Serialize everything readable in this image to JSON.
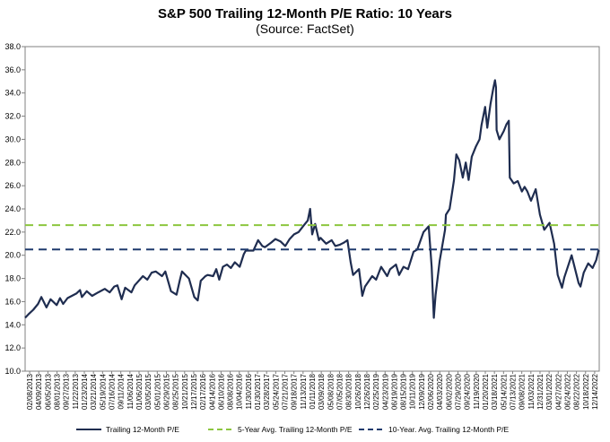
{
  "chart_data": {
    "type": "line",
    "title": "S&P 500 Trailing 12-Month P/E Ratio: 10 Years",
    "subtitle": "(Source: FactSet)",
    "xlabel": "",
    "ylabel": "",
    "ylim": [
      10.0,
      38.0
    ],
    "y_ticks": [
      "10.0",
      "12.0",
      "14.0",
      "16.0",
      "18.0",
      "20.0",
      "22.0",
      "24.0",
      "26.0",
      "28.0",
      "30.0",
      "32.0",
      "34.0",
      "36.0",
      "38.0"
    ],
    "x_start": "2013-02-08",
    "x_end": "2023-02-08",
    "x_ticks": [
      "02/08/2013",
      "04/09/2013",
      "06/05/2013",
      "08/01/2013",
      "09/27/2013",
      "11/22/2013",
      "01/23/2014",
      "03/21/2014",
      "05/19/2014",
      "07/16/2014",
      "09/11/2014",
      "11/06/2014",
      "01/06/2015",
      "03/05/2015",
      "05/01/2015",
      "06/29/2015",
      "08/25/2015",
      "10/21/2015",
      "12/17/2015",
      "02/17/2016",
      "04/14/2016",
      "06/10/2016",
      "08/08/2016",
      "10/04/2016",
      "11/30/2016",
      "01/30/2017",
      "03/28/2017",
      "05/24/2017",
      "07/21/2017",
      "09/18/2017",
      "11/13/2017",
      "01/11/2018",
      "03/09/2018",
      "05/08/2018",
      "07/05/2018",
      "08/30/2018",
      "10/26/2018",
      "12/26/2018",
      "02/25/2019",
      "04/23/2019",
      "06/19/2019",
      "08/15/2019",
      "10/11/2019",
      "12/09/2019",
      "02/06/2020",
      "04/03/2020",
      "06/02/2020",
      "07/29/2020",
      "09/24/2020",
      "11/19/2020",
      "01/20/2021",
      "03/18/2021",
      "05/14/2021",
      "07/13/2021",
      "09/08/2021",
      "11/03/2021",
      "12/31/2021",
      "03/01/2022",
      "04/27/2022",
      "06/24/2022",
      "08/22/2022",
      "10/18/2022",
      "12/14/2022"
    ],
    "series": [
      {
        "name": "Trailing 12-Month P/E",
        "color": "#1f2d50",
        "style": "solid",
        "points": [
          [
            "2013-02-08",
            14.6
          ],
          [
            "2013-03-01",
            14.9
          ],
          [
            "2013-04-01",
            15.3
          ],
          [
            "2013-05-01",
            15.8
          ],
          [
            "2013-05-22",
            16.4
          ],
          [
            "2013-06-24",
            15.5
          ],
          [
            "2013-07-20",
            16.2
          ],
          [
            "2013-08-28",
            15.7
          ],
          [
            "2013-09-18",
            16.3
          ],
          [
            "2013-10-08",
            15.8
          ],
          [
            "2013-11-05",
            16.3
          ],
          [
            "2013-12-31",
            16.7
          ],
          [
            "2014-01-23",
            17.0
          ],
          [
            "2014-02-04",
            16.4
          ],
          [
            "2014-03-07",
            16.9
          ],
          [
            "2014-04-10",
            16.5
          ],
          [
            "2014-05-19",
            16.8
          ],
          [
            "2014-06-30",
            17.1
          ],
          [
            "2014-07-31",
            16.8
          ],
          [
            "2014-08-29",
            17.3
          ],
          [
            "2014-09-18",
            17.4
          ],
          [
            "2014-10-15",
            16.2
          ],
          [
            "2014-11-06",
            17.2
          ],
          [
            "2014-12-16",
            16.8
          ],
          [
            "2015-01-06",
            17.4
          ],
          [
            "2015-02-27",
            18.2
          ],
          [
            "2015-03-27",
            17.9
          ],
          [
            "2015-04-24",
            18.5
          ],
          [
            "2015-05-20",
            18.6
          ],
          [
            "2015-06-29",
            18.2
          ],
          [
            "2015-07-20",
            18.6
          ],
          [
            "2015-08-25",
            16.9
          ],
          [
            "2015-09-29",
            16.6
          ],
          [
            "2015-10-21",
            17.9
          ],
          [
            "2015-11-03",
            18.6
          ],
          [
            "2015-12-17",
            18.0
          ],
          [
            "2016-01-20",
            16.4
          ],
          [
            "2016-02-11",
            16.1
          ],
          [
            "2016-03-01",
            17.8
          ],
          [
            "2016-03-31",
            18.2
          ],
          [
            "2016-04-14",
            18.3
          ],
          [
            "2016-05-19",
            18.2
          ],
          [
            "2016-06-08",
            18.8
          ],
          [
            "2016-06-27",
            17.9
          ],
          [
            "2016-07-20",
            19.0
          ],
          [
            "2016-08-15",
            19.2
          ],
          [
            "2016-09-09",
            18.9
          ],
          [
            "2016-10-04",
            19.4
          ],
          [
            "2016-11-04",
            19.0
          ],
          [
            "2016-11-30",
            20.1
          ],
          [
            "2016-12-13",
            20.4
          ],
          [
            "2017-01-30",
            20.4
          ],
          [
            "2017-03-01",
            21.3
          ],
          [
            "2017-03-28",
            20.8
          ],
          [
            "2017-04-13",
            20.7
          ],
          [
            "2017-05-24",
            21.1
          ],
          [
            "2017-06-19",
            21.4
          ],
          [
            "2017-07-21",
            21.2
          ],
          [
            "2017-08-21",
            20.8
          ],
          [
            "2017-09-18",
            21.4
          ],
          [
            "2017-10-16",
            21.8
          ],
          [
            "2017-11-13",
            22.0
          ],
          [
            "2017-12-18",
            22.6
          ],
          [
            "2018-01-11",
            23.0
          ],
          [
            "2018-01-26",
            24.0
          ],
          [
            "2018-02-08",
            21.8
          ],
          [
            "2018-02-27",
            22.7
          ],
          [
            "2018-03-23",
            21.3
          ],
          [
            "2018-04-02",
            21.5
          ],
          [
            "2018-05-08",
            21.0
          ],
          [
            "2018-06-12",
            21.3
          ],
          [
            "2018-07-05",
            20.8
          ],
          [
            "2018-08-01",
            20.9
          ],
          [
            "2018-08-30",
            21.1
          ],
          [
            "2018-09-20",
            21.3
          ],
          [
            "2018-10-11",
            19.4
          ],
          [
            "2018-10-26",
            18.3
          ],
          [
            "2018-12-03",
            18.8
          ],
          [
            "2018-12-24",
            16.5
          ],
          [
            "2019-01-10",
            17.3
          ],
          [
            "2019-02-25",
            18.2
          ],
          [
            "2019-03-22",
            17.9
          ],
          [
            "2019-04-23",
            19.0
          ],
          [
            "2019-05-31",
            18.2
          ],
          [
            "2019-06-19",
            18.8
          ],
          [
            "2019-07-26",
            19.2
          ],
          [
            "2019-08-15",
            18.3
          ],
          [
            "2019-09-12",
            19.0
          ],
          [
            "2019-10-11",
            18.8
          ],
          [
            "2019-11-15",
            20.3
          ],
          [
            "2019-12-09",
            20.5
          ],
          [
            "2020-01-17",
            22.0
          ],
          [
            "2020-02-19",
            22.5
          ],
          [
            "2020-03-09",
            19.0
          ],
          [
            "2020-03-23",
            14.6
          ],
          [
            "2020-04-03",
            16.6
          ],
          [
            "2020-04-29",
            19.5
          ],
          [
            "2020-06-02",
            22.2
          ],
          [
            "2020-06-08",
            23.5
          ],
          [
            "2020-07-01",
            24.0
          ],
          [
            "2020-07-29",
            26.5
          ],
          [
            "2020-08-13",
            28.7
          ],
          [
            "2020-08-31",
            28.2
          ],
          [
            "2020-09-23",
            26.7
          ],
          [
            "2020-10-12",
            28.0
          ],
          [
            "2020-10-30",
            26.5
          ],
          [
            "2020-11-19",
            28.5
          ],
          [
            "2020-12-16",
            29.4
          ],
          [
            "2021-01-08",
            30.0
          ],
          [
            "2021-01-20",
            31.2
          ],
          [
            "2021-02-12",
            32.8
          ],
          [
            "2021-02-26",
            31.0
          ],
          [
            "2021-03-18",
            33.0
          ],
          [
            "2021-04-05",
            34.4
          ],
          [
            "2021-04-16",
            35.1
          ],
          [
            "2021-04-22",
            34.5
          ],
          [
            "2021-04-26",
            30.8
          ],
          [
            "2021-05-14",
            30.0
          ],
          [
            "2021-06-10",
            30.7
          ],
          [
            "2021-06-28",
            31.3
          ],
          [
            "2021-07-13",
            31.6
          ],
          [
            "2021-07-19",
            26.7
          ],
          [
            "2021-08-13",
            26.2
          ],
          [
            "2021-09-08",
            26.4
          ],
          [
            "2021-10-04",
            25.5
          ],
          [
            "2021-10-21",
            25.9
          ],
          [
            "2021-11-08",
            25.5
          ],
          [
            "2021-12-01",
            24.7
          ],
          [
            "2021-12-31",
            25.7
          ],
          [
            "2022-01-27",
            23.5
          ],
          [
            "2022-02-23",
            22.2
          ],
          [
            "2022-03-29",
            22.8
          ],
          [
            "2022-04-27",
            21.0
          ],
          [
            "2022-05-20",
            18.3
          ],
          [
            "2022-06-16",
            17.2
          ],
          [
            "2022-07-01",
            18.1
          ],
          [
            "2022-08-16",
            20.0
          ],
          [
            "2022-09-30",
            17.6
          ],
          [
            "2022-10-12",
            17.3
          ],
          [
            "2022-11-01",
            18.5
          ],
          [
            "2022-11-30",
            19.3
          ],
          [
            "2022-12-28",
            18.9
          ],
          [
            "2023-01-20",
            19.6
          ],
          [
            "2023-02-03",
            20.4
          ],
          [
            "2023-02-08",
            20.3
          ]
        ]
      },
      {
        "name": "5-Year Avg. Trailing 12-Month P/E",
        "color": "#8cc63f",
        "style": "dashed",
        "value": 22.6
      },
      {
        "name": "10-Year. Avg. Trailing 12-Month P/E",
        "color": "#1f3a6d",
        "style": "dashed",
        "value": 20.5
      }
    ],
    "grid": false,
    "legend_position": "bottom"
  }
}
